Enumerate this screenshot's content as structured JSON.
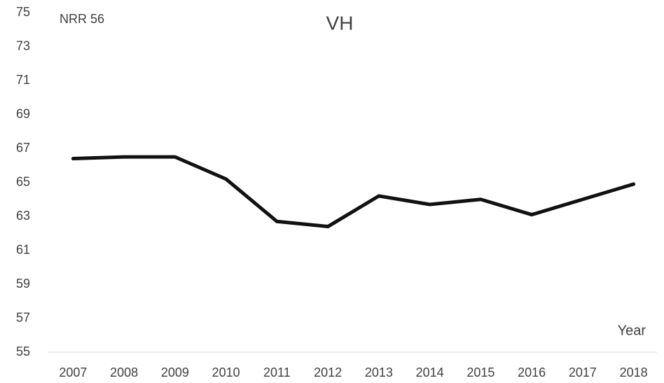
{
  "chart_data": {
    "type": "line",
    "title": "VH",
    "annotation": "NRR 56",
    "x_label": "Year",
    "categories": [
      "2007",
      "2008",
      "2009",
      "2010",
      "2011",
      "2012",
      "2013",
      "2014",
      "2015",
      "2016",
      "2017",
      "2018"
    ],
    "series": [
      {
        "name": "VH",
        "color": "#111111",
        "values": [
          66.4,
          66.5,
          66.5,
          65.2,
          62.7,
          62.4,
          64.2,
          63.7,
          64.0,
          63.1,
          64.0,
          64.9
        ]
      }
    ],
    "ylim": [
      55,
      75
    ],
    "yticks": [
      55,
      57,
      59,
      61,
      63,
      65,
      67,
      69,
      71,
      73,
      75
    ],
    "grid": false
  }
}
